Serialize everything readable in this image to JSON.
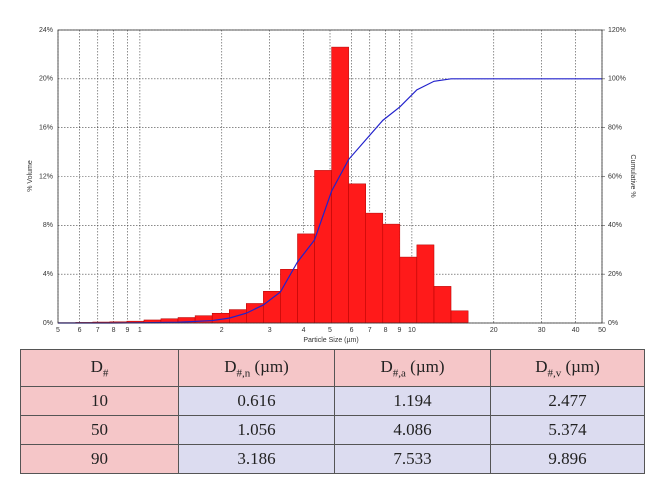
{
  "chart_data": {
    "type": "histogram",
    "xlabel": "Particle Size (µm)",
    "ylabel": "% Volume",
    "y2label": "Cumulative %",
    "xscale": "log",
    "grid": true,
    "color": "#ff1a1a",
    "edgecolor": "#b00000",
    "bins": [
      0.5,
      0.581,
      0.671,
      0.775,
      0.896,
      1.035,
      1.195,
      1.381,
      1.596,
      1.844,
      2.131,
      2.461,
      2.844,
      3.286,
      3.797,
      4.386,
      5.068,
      5.856,
      6.766,
      7.818,
      9.03,
      10.43,
      12.06,
      13.93,
      16.1
    ],
    "values": [
      0.03,
      0.05,
      0.08,
      0.1,
      0.15,
      0.25,
      0.35,
      0.45,
      0.6,
      0.8,
      1.1,
      1.6,
      2.6,
      4.4,
      7.3,
      12.5,
      22.6,
      11.4,
      9.0,
      8.1,
      5.4,
      6.4,
      3.0,
      1.0
    ],
    "cumulative": {
      "color": "#2222cc",
      "axis": "y2",
      "x": [
        0.5,
        0.775,
        1.035,
        1.381,
        1.844,
        2.131,
        2.461,
        2.844,
        3.286,
        3.797,
        4.386,
        5.068,
        5.856,
        6.766,
        7.818,
        9.03,
        10.43,
        12.06,
        13.93,
        16.1,
        50
      ],
      "values": [
        0,
        0,
        0.1,
        0.3,
        1,
        2,
        4,
        7.4,
        12.7,
        25,
        34,
        54,
        67,
        75,
        83,
        88.5,
        95.5,
        99,
        100,
        100,
        100
      ]
    },
    "xlim": [
      0.5,
      50
    ],
    "xticks": [
      {
        "value": 0.5,
        "label": "5"
      },
      {
        "value": 0.6,
        "label": "6"
      },
      {
        "value": 0.7,
        "label": "7"
      },
      {
        "value": 0.8,
        "label": "8"
      },
      {
        "value": 0.9,
        "label": "9"
      },
      1,
      2,
      3,
      4,
      5,
      6,
      7,
      8,
      9,
      10,
      20,
      30,
      40,
      50
    ],
    "ylim": [
      0,
      24
    ],
    "yticks": [
      {
        "value": 0,
        "label": "0%"
      },
      {
        "value": 4,
        "label": "4%"
      },
      {
        "value": 8,
        "label": "8%"
      },
      {
        "value": 12,
        "label": "12%"
      },
      {
        "value": 16,
        "label": "16%"
      },
      {
        "value": 20,
        "label": "20%"
      },
      {
        "value": 24,
        "label": "24%"
      }
    ],
    "y2lim": [
      0,
      120
    ],
    "y2ticks": [
      {
        "value": 0,
        "label": "0%"
      },
      {
        "value": 20,
        "label": "20%"
      },
      {
        "value": 40,
        "label": "40%"
      },
      {
        "value": 60,
        "label": "60%"
      },
      {
        "value": 80,
        "label": "80%"
      },
      {
        "value": 100,
        "label": "100%"
      },
      {
        "value": 120,
        "label": "120%"
      }
    ]
  },
  "table": {
    "header": [
      {
        "base": "D",
        "sub": "#"
      },
      {
        "base": "D",
        "sub": "#,n",
        "unit": "(µm)"
      },
      {
        "base": "D",
        "sub": "#,a",
        "unit": "(µm)"
      },
      {
        "base": "D",
        "sub": "#,v",
        "unit": "(µm)"
      }
    ],
    "rows": [
      [
        "10",
        "0.616",
        "1.194",
        "2.477"
      ],
      [
        "50",
        "1.056",
        "4.086",
        "5.374"
      ],
      [
        "90",
        "3.186",
        "7.533",
        "9.896"
      ]
    ]
  }
}
